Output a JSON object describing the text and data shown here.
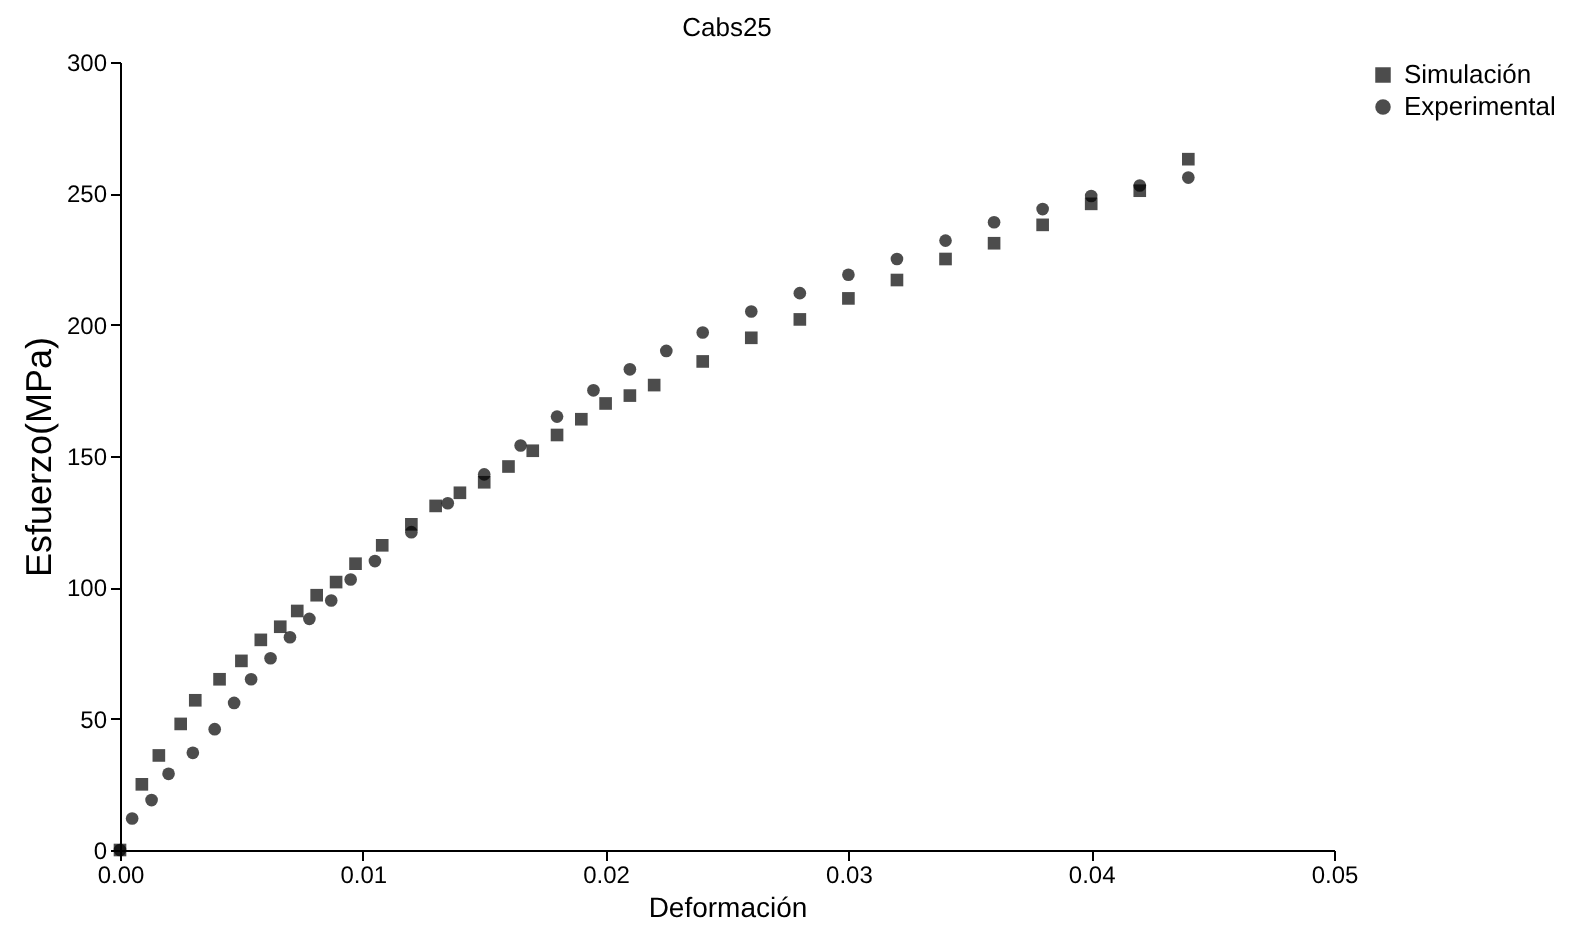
{
  "chart_data": {
    "type": "scatter",
    "title": "Cabs25",
    "xlabel": "Deformación",
    "ylabel": "Esfuerzo(MPa)",
    "xlim": [
      0,
      0.05
    ],
    "ylim": [
      0,
      300
    ],
    "xticks": [
      {
        "value": 0,
        "label": "0.00"
      },
      0.01,
      0.02,
      0.03,
      0.04,
      {
        "value": 0.05,
        "label": "0.05"
      }
    ],
    "yticks": [
      0,
      50,
      100,
      150,
      200,
      250,
      300
    ],
    "legend": "right",
    "grid": false,
    "series": [
      {
        "name": "Simulación",
        "color": "#000000",
        "marker": "square",
        "x": [
          0,
          0.0009,
          0.0016,
          0.0025,
          0.0031,
          0.0041,
          0.005,
          0.0058,
          0.0066,
          0.0073,
          0.0081,
          0.0089,
          0.0097,
          0.0108,
          0.012,
          0.013,
          0.014,
          0.015,
          0.016,
          0.017,
          0.018,
          0.019,
          0.02,
          0.021,
          0.022,
          0.024,
          0.026,
          0.028,
          0.03,
          0.032,
          0.034,
          0.036,
          0.038,
          0.04,
          0.042,
          0.044
        ],
        "values": [
          0,
          25,
          36,
          48,
          57,
          65,
          72,
          80,
          85,
          91,
          97,
          102,
          109,
          116,
          124,
          131,
          136,
          140,
          146,
          152,
          158,
          164,
          170,
          173,
          177,
          186,
          195,
          202,
          210,
          217,
          225,
          231,
          238,
          246,
          251,
          263
        ]
      },
      {
        "name": "Experimental",
        "color": "#000000",
        "marker": "circle",
        "x": [
          0,
          0.0005,
          0.0013,
          0.002,
          0.003,
          0.0039,
          0.0047,
          0.0054,
          0.0062,
          0.007,
          0.0078,
          0.0087,
          0.0095,
          0.0105,
          0.012,
          0.0135,
          0.015,
          0.0165,
          0.018,
          0.0195,
          0.021,
          0.0225,
          0.024,
          0.026,
          0.028,
          0.03,
          0.032,
          0.034,
          0.036,
          0.038,
          0.04,
          0.042,
          0.044
        ],
        "values": [
          0,
          12,
          19,
          29,
          37,
          46,
          56,
          65,
          73,
          81,
          88,
          95,
          103,
          110,
          121,
          132,
          143,
          154,
          165,
          175,
          183,
          190,
          197,
          205,
          212,
          219,
          225,
          232,
          239,
          244,
          249,
          253,
          256
        ]
      }
    ]
  }
}
